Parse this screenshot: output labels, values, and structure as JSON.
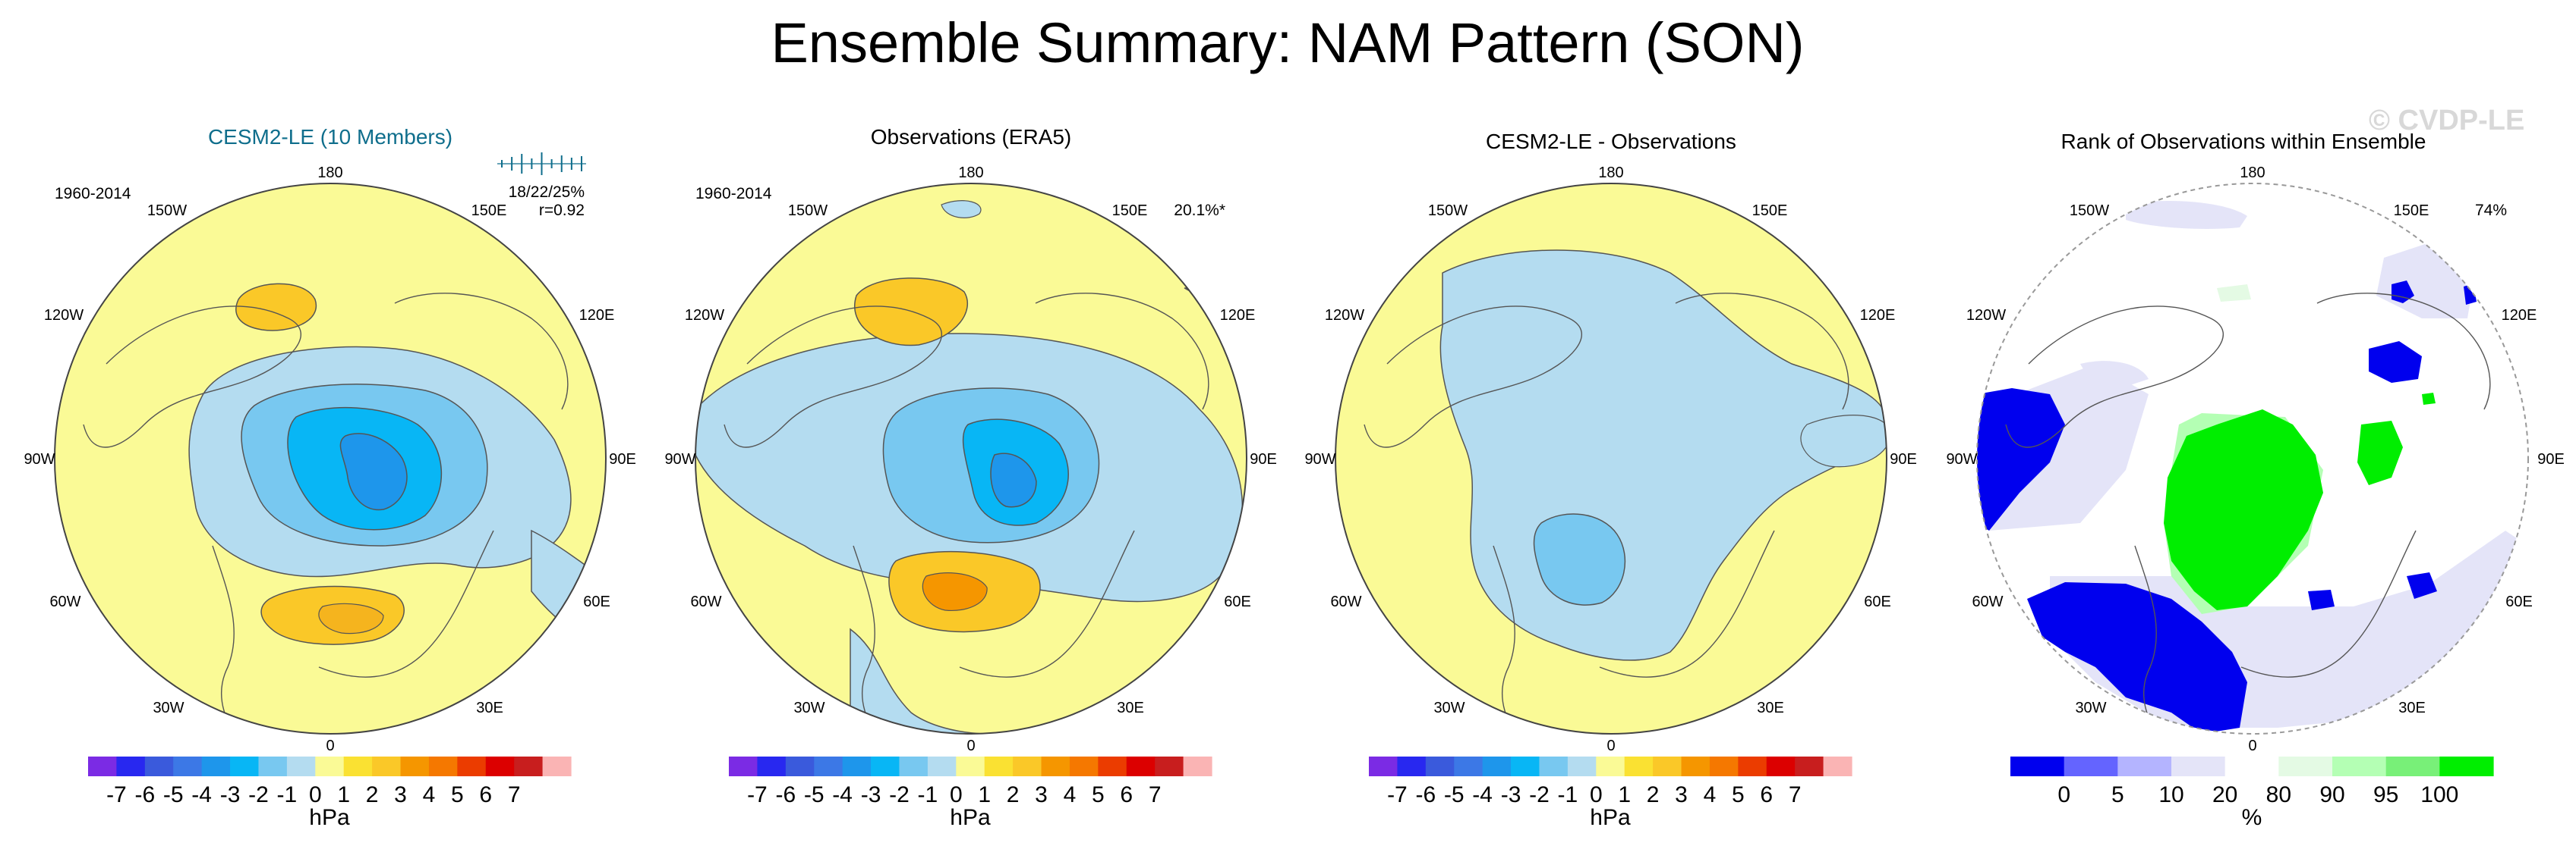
{
  "title": "Ensemble Summary: NAM Pattern (SON)",
  "watermark": "© CVDP-LE",
  "colors": {
    "diverging": [
      "#7b2be4",
      "#2828f0",
      "#3a5adc",
      "#3c78e6",
      "#1e96eb",
      "#08b6f5",
      "#78c8f0",
      "#b4dcf0",
      "#fafa96",
      "#fae132",
      "#fac828",
      "#f59600",
      "#f57800",
      "#eb3c00",
      "#dc0000",
      "#c81e1e",
      "#fab4b4"
    ],
    "rank": [
      "#0000ee",
      "#6464ff",
      "#b4b4ff",
      "#e4e4f8",
      "#ffffff",
      "#e4fae4",
      "#b4ffb4",
      "#78f078",
      "#00ee00"
    ],
    "land_outline": "#555555",
    "title_blue": "#0f6e8c"
  },
  "chart_data": [
    {
      "type": "heatmap",
      "projection": "polar-stereographic-north",
      "title": "CESM2-LE (10 Members)",
      "left_label": "1960-2014",
      "right_label": "",
      "stats": [
        "18/22/25%",
        "r=0.92"
      ],
      "ensemble_spread_ticks": 9,
      "longitude_labels": [
        "180",
        "150W",
        "150E",
        "120W",
        "120E",
        "90W",
        "90E",
        "60W",
        "60E",
        "30W",
        "30E",
        "0"
      ],
      "colorbar": {
        "tick_labels": [
          "-7",
          "-6",
          "-5",
          "-4",
          "-3",
          "-2",
          "-1",
          "0",
          "1",
          "2",
          "3",
          "4",
          "5",
          "6",
          "7"
        ],
        "unit": "hPa",
        "palette": "diverging"
      },
      "field": [
        {
          "label": "negative center (Arctic)",
          "value": -4.5
        },
        {
          "label": "positive lobe (N Pacific)",
          "value": 1.5
        },
        {
          "label": "positive lobe (Europe)",
          "value": 1.5
        }
      ]
    },
    {
      "type": "heatmap",
      "projection": "polar-stereographic-north",
      "title": "Observations (ERA5)",
      "left_label": "1960-2014",
      "right_label": "20.1%*",
      "stats": [],
      "longitude_labels": [
        "180",
        "150W",
        "150E",
        "120W",
        "120E",
        "90W",
        "90E",
        "60W",
        "60E",
        "30W",
        "30E",
        "0"
      ],
      "colorbar": {
        "tick_labels": [
          "-7",
          "-6",
          "-5",
          "-4",
          "-3",
          "-2",
          "-1",
          "0",
          "1",
          "2",
          "3",
          "4",
          "5",
          "6",
          "7"
        ],
        "unit": "hPa",
        "palette": "diverging"
      },
      "field": [
        {
          "label": "negative center (Arctic)",
          "value": -4.5
        },
        {
          "label": "positive lobe (N Pacific)",
          "value": 2.0
        },
        {
          "label": "positive lobe (Atlantic/Europe)",
          "value": 3.0
        }
      ]
    },
    {
      "type": "heatmap",
      "projection": "polar-stereographic-north",
      "title": "CESM2-LE - Observations",
      "left_label": "",
      "right_label": "",
      "stats": [],
      "longitude_labels": [
        "180",
        "150W",
        "150E",
        "120W",
        "120E",
        "90W",
        "90E",
        "60W",
        "60E",
        "30W",
        "30E",
        "0"
      ],
      "colorbar": {
        "tick_labels": [
          "-7",
          "-6",
          "-5",
          "-4",
          "-3",
          "-2",
          "-1",
          "0",
          "1",
          "2",
          "3",
          "4",
          "5",
          "6",
          "7"
        ],
        "unit": "hPa",
        "palette": "diverging"
      },
      "field": [
        {
          "label": "negative band (Arctic/Atlantic)",
          "value": -0.5
        },
        {
          "label": "negative center (N Atlantic)",
          "value": -1.5
        },
        {
          "label": "background",
          "value": 0.5
        }
      ]
    },
    {
      "type": "heatmap",
      "projection": "polar-stereographic-north",
      "title": "Rank of Observations within Ensemble",
      "left_label": "",
      "right_label": "74%",
      "stats": [],
      "longitude_labels": [
        "180",
        "150W",
        "150E",
        "120W",
        "120E",
        "90W",
        "90E",
        "60W",
        "60E",
        "30W",
        "30E",
        "0"
      ],
      "colorbar": {
        "tick_labels": [
          "0",
          "5",
          "10",
          "20",
          "80",
          "90",
          "95",
          "100"
        ],
        "unit": "%",
        "palette": "rank"
      },
      "field": [
        {
          "label": "rank below 5% (N America / N Atlantic)",
          "value": 0
        },
        {
          "label": "rank above 95% (Arctic)",
          "value": 100
        }
      ]
    }
  ]
}
